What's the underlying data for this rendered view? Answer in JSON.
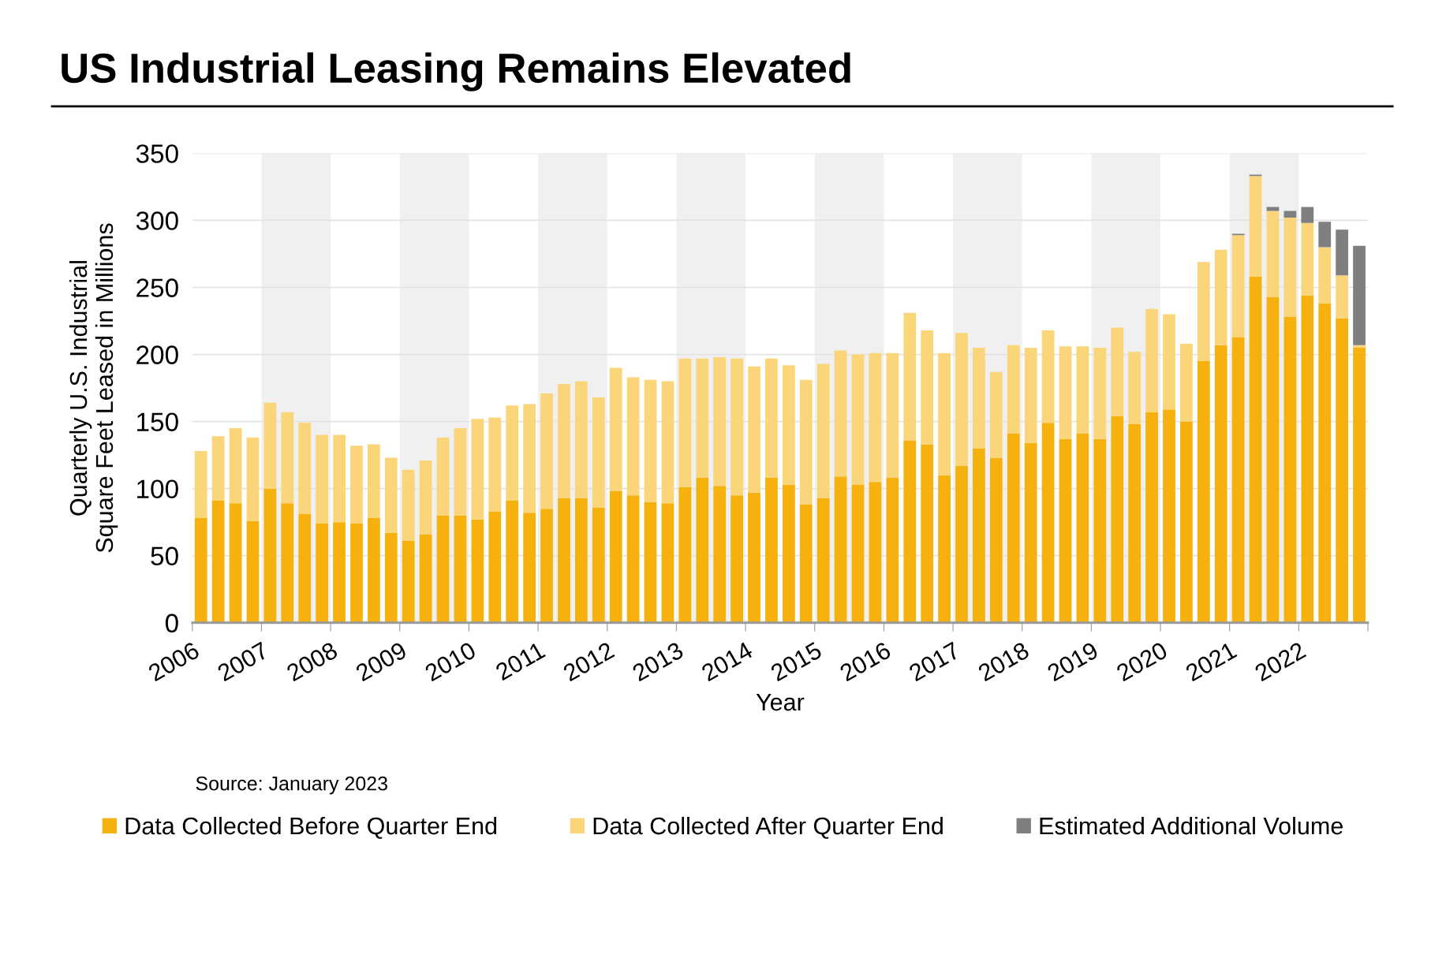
{
  "chart_data": {
    "type": "bar",
    "stacked": true,
    "title": "US Industrial Leasing Remains Elevated",
    "xlabel": "Year",
    "ylabel": "Quarterly U.S. Industrial\nSquare Feet Leased in Millions",
    "x": [
      2006.125,
      2006.375,
      2006.625,
      2006.875,
      2007.125,
      2007.375,
      2007.625,
      2007.875,
      2008.125,
      2008.375,
      2008.625,
      2008.875,
      2009.125,
      2009.375,
      2009.625,
      2009.875,
      2010.125,
      2010.375,
      2010.625,
      2010.875,
      2011.125,
      2011.375,
      2011.625,
      2011.875,
      2012.125,
      2012.375,
      2012.625,
      2012.875,
      2013.125,
      2013.375,
      2013.625,
      2013.875,
      2014.125,
      2014.375,
      2014.625,
      2014.875,
      2015.125,
      2015.375,
      2015.625,
      2015.875,
      2016.125,
      2016.375,
      2016.625,
      2016.875,
      2017.125,
      2017.375,
      2017.625,
      2017.875,
      2018.125,
      2018.375,
      2018.625,
      2018.875,
      2019.125,
      2019.375,
      2019.625,
      2019.875,
      2020.125,
      2020.375,
      2020.625,
      2020.875,
      2021.125,
      2021.375,
      2021.625,
      2021.875,
      2022.125,
      2022.375,
      2022.625,
      2022.875
    ],
    "series": [
      {
        "name": "Data Collected Before Quarter End",
        "color": "#f7b10f",
        "values": [
          78,
          91,
          89,
          76,
          100,
          89,
          81,
          74,
          75,
          74,
          78,
          67,
          61,
          66,
          80,
          80,
          77,
          83,
          91,
          82,
          85,
          93,
          93,
          86,
          98,
          95,
          90,
          89,
          101,
          108,
          102,
          95,
          97,
          108,
          103,
          88,
          93,
          109,
          103,
          105,
          108,
          136,
          133,
          110,
          117,
          130,
          123,
          141,
          134,
          149,
          137,
          141,
          137,
          154,
          148,
          157,
          159,
          150,
          195,
          207,
          213,
          258,
          243,
          228,
          244,
          238,
          227,
          205
        ]
      },
      {
        "name": "Data Collected After Quarter End",
        "color": "#fbd57a",
        "values": [
          50,
          48,
          56,
          62,
          64,
          68,
          68,
          66,
          65,
          58,
          55,
          56,
          53,
          55,
          58,
          65,
          75,
          70,
          71,
          81,
          86,
          85,
          87,
          82,
          92,
          88,
          91,
          91,
          96,
          89,
          96,
          102,
          94,
          89,
          89,
          93,
          100,
          94,
          97,
          96,
          93,
          95,
          85,
          91,
          99,
          75,
          64,
          66,
          71,
          69,
          69,
          65,
          68,
          66,
          54,
          77,
          71,
          58,
          74,
          71,
          76,
          75,
          64,
          74,
          54,
          42,
          32,
          2
        ]
      },
      {
        "name": "Estimated Additional Volume",
        "color": "#7f7f7f",
        "values": [
          null,
          null,
          null,
          null,
          null,
          null,
          null,
          null,
          null,
          null,
          null,
          null,
          null,
          null,
          null,
          null,
          null,
          null,
          null,
          null,
          null,
          null,
          null,
          null,
          null,
          null,
          null,
          null,
          null,
          null,
          null,
          null,
          null,
          null,
          null,
          null,
          null,
          null,
          null,
          null,
          null,
          null,
          null,
          null,
          null,
          null,
          null,
          null,
          null,
          null,
          null,
          null,
          null,
          null,
          null,
          null,
          null,
          null,
          null,
          null,
          1,
          1,
          3,
          5,
          12,
          19,
          34,
          74
        ]
      }
    ],
    "xlim": [
      2006,
      2023
    ],
    "xticks": [
      2006,
      2007,
      2008,
      2009,
      2010,
      2011,
      2012,
      2013,
      2014,
      2015,
      2016,
      2017,
      2018,
      2019,
      2020,
      2021,
      2022,
      {
        "value": 2023,
        "label": null
      }
    ],
    "ylim": [
      0,
      350
    ],
    "yticks": [
      0,
      50,
      100,
      150,
      200,
      250,
      300,
      350
    ],
    "bands": [
      {
        "axis": "x",
        "from": 2007,
        "to": 2008,
        "color": "#f0f0f0"
      },
      {
        "axis": "x",
        "from": 2009,
        "to": 2010,
        "color": "#f0f0f0"
      },
      {
        "axis": "x",
        "from": 2011,
        "to": 2012,
        "color": "#f0f0f0"
      },
      {
        "axis": "x",
        "from": 2013,
        "to": 2014,
        "color": "#f0f0f0"
      },
      {
        "axis": "x",
        "from": 2015,
        "to": 2016,
        "color": "#f0f0f0"
      },
      {
        "axis": "x",
        "from": 2017,
        "to": 2018,
        "color": "#f0f0f0"
      },
      {
        "axis": "x",
        "from": 2019,
        "to": 2020,
        "color": "#f0f0f0"
      },
      {
        "axis": "x",
        "from": 2021,
        "to": 2022,
        "color": "#f0f0f0"
      }
    ],
    "grid": "y",
    "legend": "bottom",
    "annotations": [
      "Source: January 2023"
    ]
  }
}
